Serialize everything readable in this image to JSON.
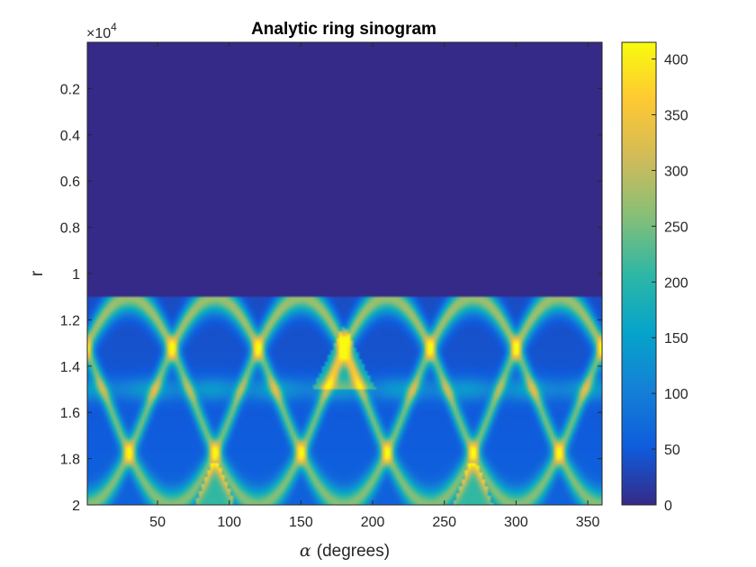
{
  "chart_data": {
    "type": "heatmap",
    "title": "Analytic ring sinogram",
    "xlabel_symbol": "α",
    "xlabel_text": "(degrees)",
    "ylabel": "r",
    "y_exponent_prefix": "×10",
    "y_exponent": "4",
    "x_range": [
      1,
      360
    ],
    "y_range": [
      0.0,
      2.0
    ],
    "y_reversed": true,
    "x_ticks": [
      50,
      100,
      150,
      200,
      250,
      300,
      350
    ],
    "x_tick_labels": [
      "50",
      "100",
      "150",
      "200",
      "250",
      "300",
      "350"
    ],
    "y_ticks": [
      0.2,
      0.4,
      0.6,
      0.8,
      1.0,
      1.2,
      1.4,
      1.6,
      1.8,
      2.0
    ],
    "y_tick_labels": [
      "0.2",
      "0.4",
      "0.6",
      "0.8",
      "1",
      "1.2",
      "1.4",
      "1.6",
      "1.8",
      "2"
    ],
    "colorbar": {
      "colormap": "parula",
      "range": [
        0,
        415
      ],
      "ticks": [
        0,
        50,
        100,
        150,
        200,
        250,
        300,
        350,
        400
      ],
      "tick_labels": [
        "0",
        "50",
        "100",
        "150",
        "200",
        "250",
        "300",
        "350",
        "400"
      ]
    },
    "ring": {
      "sources": 6,
      "angular_period_degrees": 60,
      "center_r_range": [
        1.1,
        2.0
      ],
      "ridge_r": 1.5,
      "peak_value": 415
    },
    "grid": false,
    "legend": "none"
  }
}
